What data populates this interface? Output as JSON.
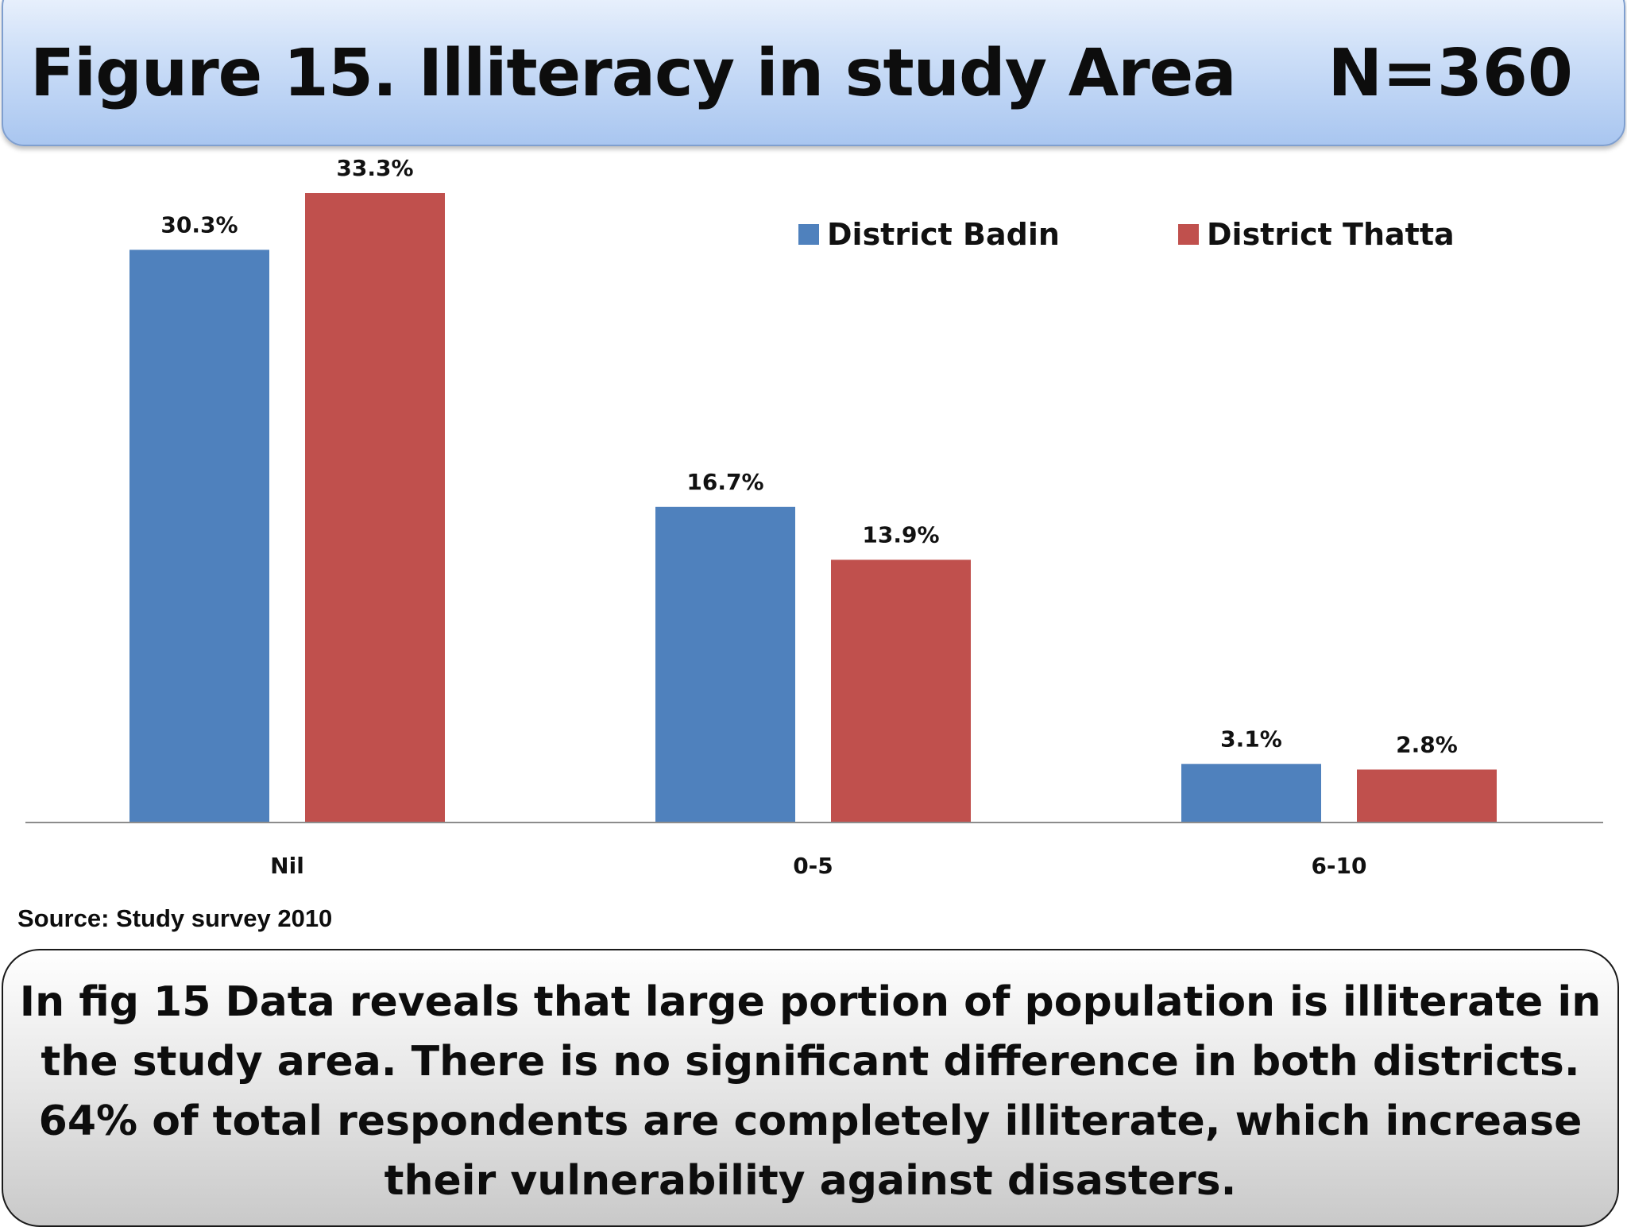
{
  "header": {
    "title": "Figure 15. Illiteracy in study Area",
    "sample_size": "N=360"
  },
  "chart_data": {
    "type": "bar",
    "categories": [
      "Nil",
      "0-5",
      "6-10"
    ],
    "series": [
      {
        "name": "District Badin",
        "values": [
          30.3,
          16.7,
          3.1
        ],
        "labels": [
          "30.3%",
          "16.7%",
          "3.1%"
        ],
        "color": "#4f81bd"
      },
      {
        "name": "District Thatta",
        "values": [
          33.3,
          13.9,
          2.8
        ],
        "labels": [
          "33.3%",
          "13.9%",
          "2.8%"
        ],
        "color": "#c0504d"
      }
    ],
    "ylim": [
      0,
      33.3
    ],
    "grid": false,
    "legend": "top-right",
    "value_unit": "%"
  },
  "source": "Source: Study survey 2010",
  "summary": "In fig 15 Data reveals that large portion of  population is illiterate in the study area. There is no significant difference in both districts. 64% of total respondents are completely illiterate, which increase their vulnerability against disasters."
}
